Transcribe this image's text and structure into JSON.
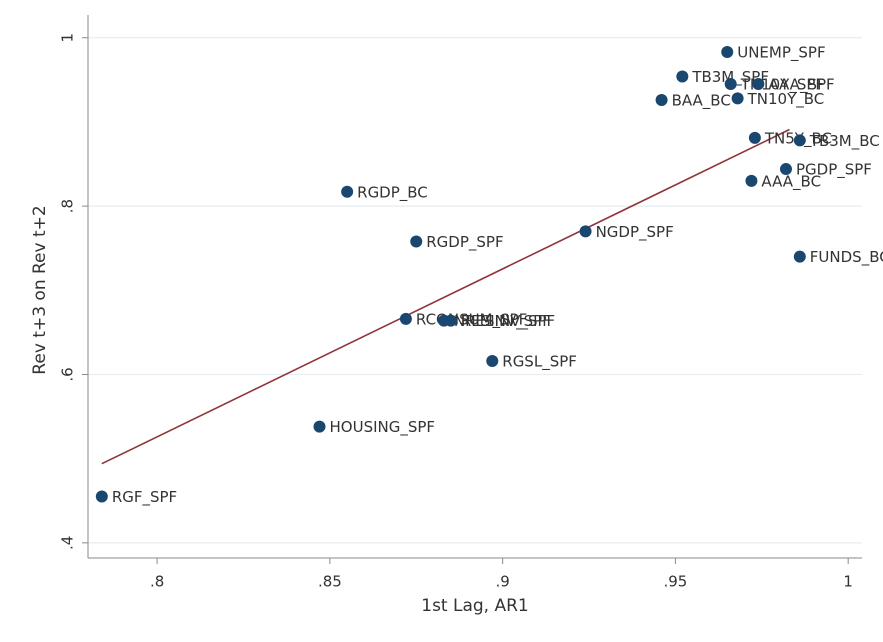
{
  "chart_data": {
    "type": "scatter",
    "x_label": "1st Lag, AR1",
    "y_label": "Rev t+3 on Rev t+2",
    "labels": [
      "RGF_SPF",
      "HOUSING_SPF",
      "RGDP_BC",
      "RGDP_SPF",
      "RCONSUM_SPF",
      "NRESINV_SPF",
      "RESINV_SPF",
      "RGSL_SPF",
      "NGDP_SPF",
      "BAA_BC",
      "TB3M_SPF",
      "UNEMP_SPF",
      "TN10Y_BC",
      "TN10Y_SPF",
      "AAA_SPF",
      "TN5Y_BC",
      "TB3M_BC",
      "PGDP_SPF",
      "AAA_BC",
      "FUNDS_BC"
    ],
    "x": [
      0.784,
      0.847,
      0.855,
      0.875,
      0.872,
      0.883,
      0.885,
      0.897,
      0.924,
      0.946,
      0.952,
      0.965,
      0.968,
      0.966,
      0.974,
      0.973,
      0.986,
      0.982,
      0.972,
      0.986
    ],
    "values": [
      0.455,
      0.538,
      0.817,
      0.758,
      0.666,
      0.664,
      0.664,
      0.616,
      0.77,
      0.926,
      0.954,
      0.983,
      0.928,
      0.945,
      0.945,
      0.881,
      0.878,
      0.844,
      0.83,
      0.74
    ],
    "color": "#1a476f",
    "fit": {
      "x": [
        0.784,
        0.983
      ],
      "values": [
        0.494,
        0.891
      ],
      "color": "#90353b"
    },
    "xlim": [
      0.78,
      1.004
    ],
    "ylim": [
      0.382,
      1.027
    ],
    "xticks": [
      {
        "value": 0.8,
        "label": ".8"
      },
      {
        "value": 0.85,
        "label": ".85"
      },
      {
        "value": 0.9,
        "label": ".9"
      },
      {
        "value": 0.95,
        "label": ".95"
      },
      1
    ],
    "yticks": [
      {
        "value": 0.4,
        "label": ".4"
      },
      {
        "value": 0.6,
        "label": ".6"
      },
      {
        "value": 0.8,
        "label": ".8"
      },
      1
    ],
    "grid": true
  }
}
